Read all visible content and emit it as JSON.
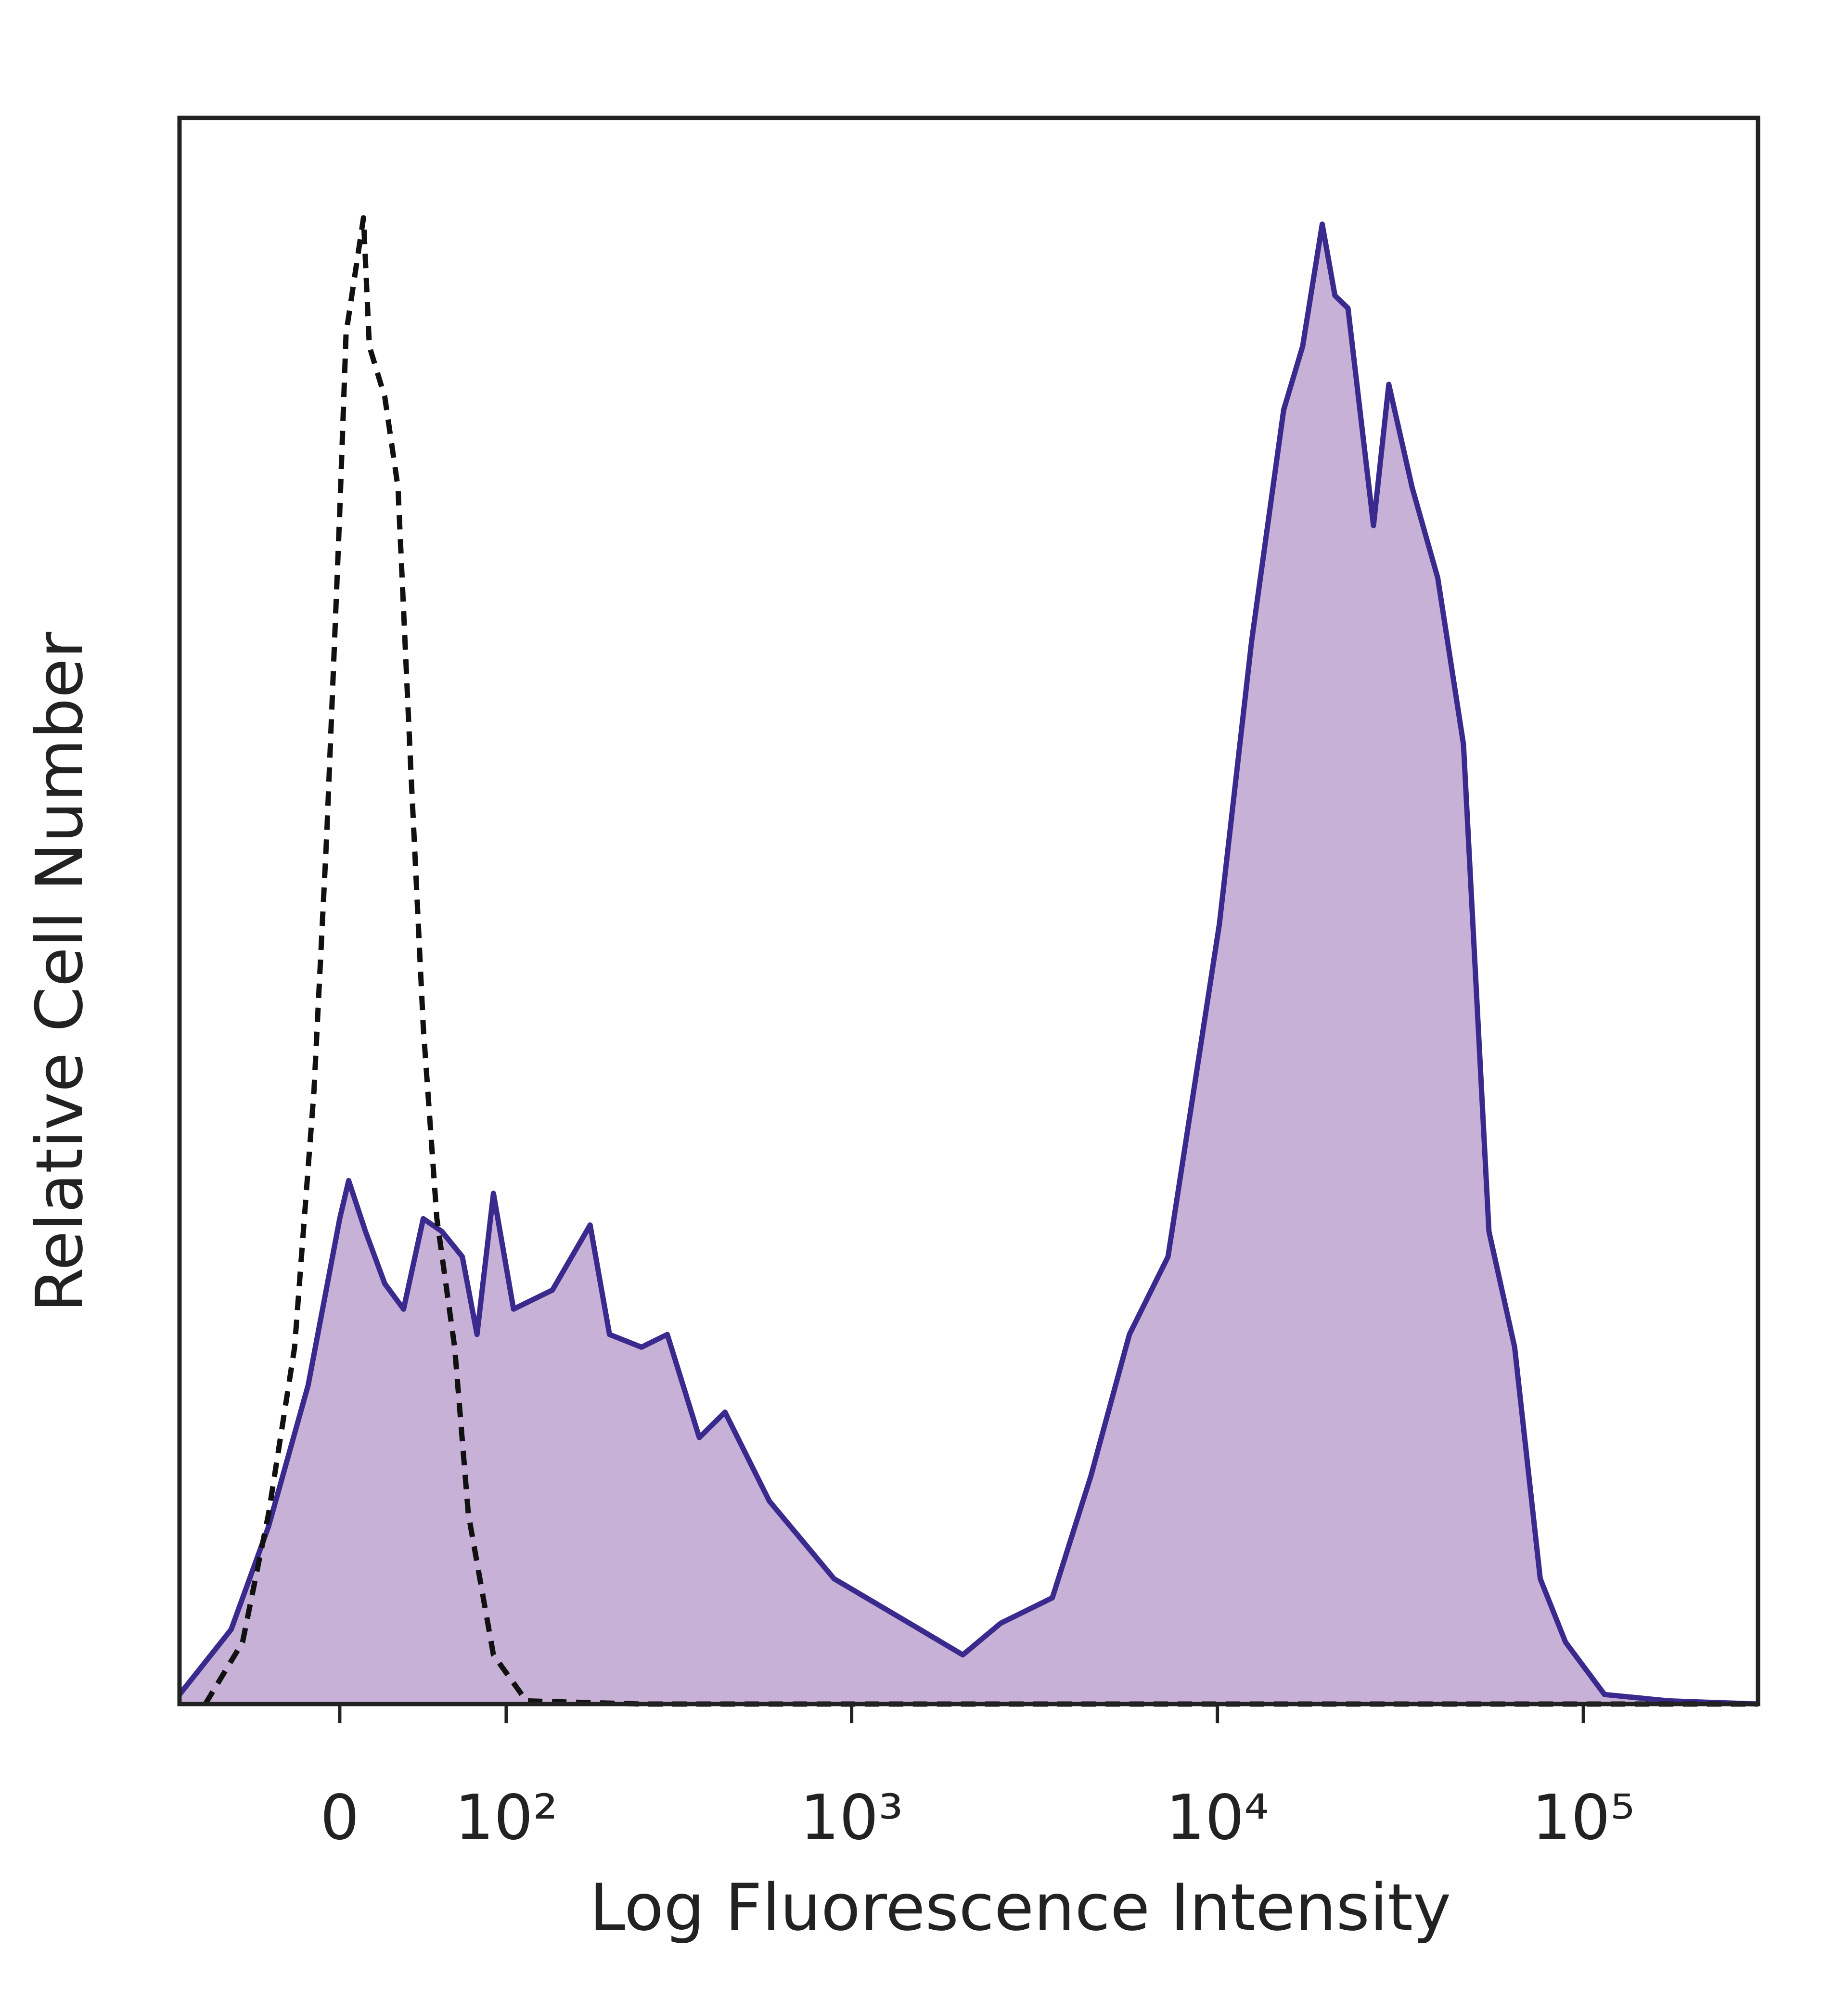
{
  "chart_data": {
    "type": "histogram-overlay",
    "xlabel": "Log Fluorescence Intensity",
    "ylabel": "Relative Cell Number",
    "xscale": "biexponential",
    "xlim": [
      -95,
      300000
    ],
    "ylim": [
      0,
      100
    ],
    "xticks": [
      0,
      {
        "value": 100,
        "label": "10²"
      },
      {
        "value": 1000,
        "label": "10³"
      },
      {
        "value": 10000,
        "label": "10⁴"
      },
      {
        "value": 100000,
        "label": "10⁵"
      }
    ],
    "series": [
      {
        "color": "#3b2a8e",
        "fill": "#c8b1d6",
        "dashed": false,
        "x": [
          -95,
          -59,
          -37,
          -16,
          0,
          4.5,
          13,
          23,
          33,
          44,
          55,
          68,
          78,
          90,
          106,
          142,
          185,
          211,
          261,
          309,
          380,
          448,
          594,
          895,
          1345,
          2015,
          2560,
          3540,
          4515,
          5750,
          7330,
          8620,
          10130,
          12400,
          15175,
          17100,
          19340,
          20950,
          22740,
          26700,
          29400,
          34050,
          40000,
          47030,
          55200,
          64900,
          76240,
          89400,
          114240,
          171000,
          300000
        ],
        "values": [
          0.6,
          4.7,
          11.2,
          20.1,
          30.6,
          33.0,
          29.8,
          26.5,
          24.9,
          30.6,
          29.8,
          28.2,
          23.3,
          32.2,
          24.9,
          26.1,
          30.2,
          23.3,
          22.5,
          23.3,
          16.8,
          18.4,
          12.8,
          7.9,
          5.5,
          3.1,
          5.1,
          6.7,
          14.4,
          23.3,
          28.2,
          38.7,
          49.2,
          67.0,
          81.6,
          85.6,
          93.3,
          88.8,
          88.0,
          74.3,
          83.2,
          76.7,
          71.0,
          60.5,
          29.8,
          22.5,
          7.9,
          3.9,
          0.6,
          0.2,
          0
        ]
      },
      {
        "color": "#111111",
        "fill": "none",
        "dashed": true,
        "x": [
          -76,
          -52,
          -37,
          -23,
          -13,
          -6.5,
          0,
          3.2,
          12,
          15,
          23,
          30,
          37,
          44,
          52,
          63,
          72,
          90,
          117,
          261,
          300000
        ],
        "values": [
          0,
          3.9,
          12,
          22.5,
          38.7,
          54.9,
          75.1,
          86.4,
          93.7,
          85.6,
          82.4,
          76.7,
          58.9,
          42.7,
          30.6,
          22.5,
          12,
          3.1,
          0.2,
          0,
          0
        ]
      }
    ]
  }
}
